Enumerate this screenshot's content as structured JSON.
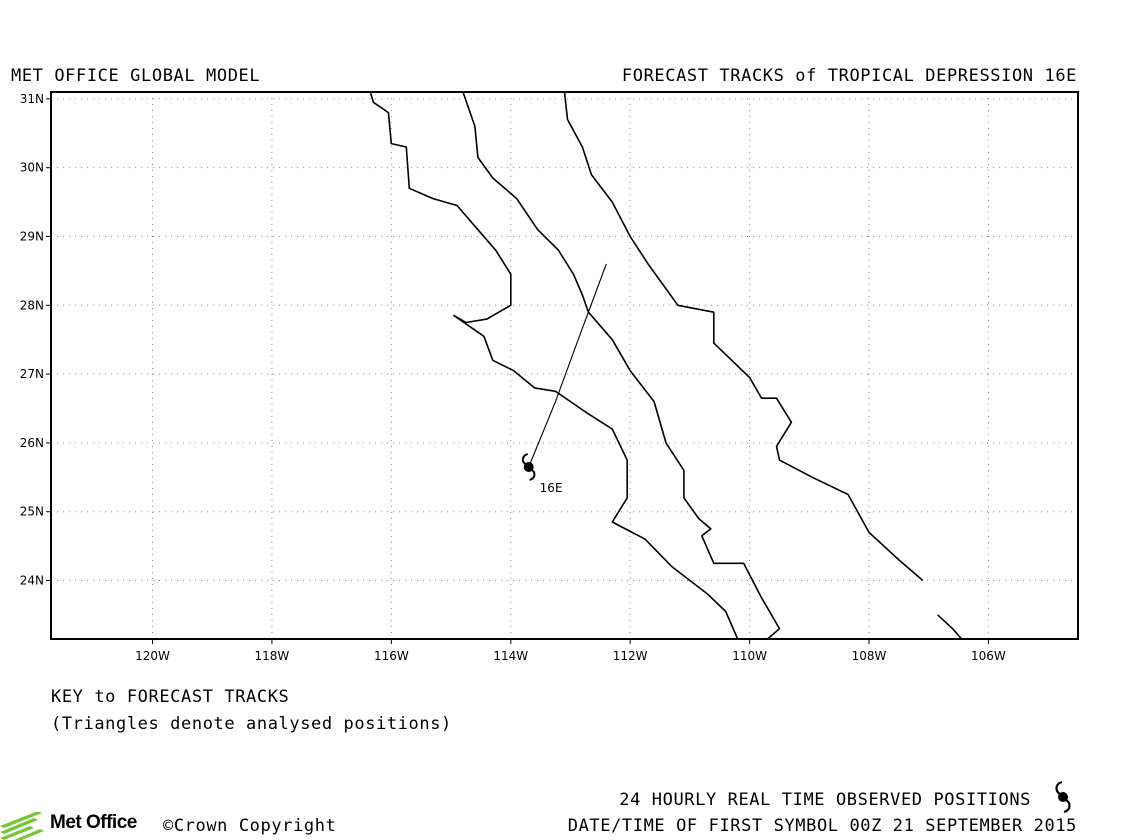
{
  "header": {
    "left_title": "MET OFFICE GLOBAL MODEL",
    "right_title": "FORECAST TRACKS of TROPICAL DEPRESSION 16E"
  },
  "map": {
    "lon_range": [
      -121.7,
      -104.5
    ],
    "lat_range": [
      23.15,
      31.1
    ],
    "lat_ticks": [
      {
        "value": 31,
        "label": "31N"
      },
      {
        "value": 30,
        "label": "30N"
      },
      {
        "value": 29,
        "label": "29N"
      },
      {
        "value": 28,
        "label": "28N"
      },
      {
        "value": 27,
        "label": "27N"
      },
      {
        "value": 26,
        "label": "26N"
      },
      {
        "value": 25,
        "label": "25N"
      },
      {
        "value": 24,
        "label": "24N"
      }
    ],
    "lon_ticks": [
      {
        "value": -120,
        "label": "120W"
      },
      {
        "value": -118,
        "label": "118W"
      },
      {
        "value": -116,
        "label": "116W"
      },
      {
        "value": -114,
        "label": "114W"
      },
      {
        "value": -112,
        "label": "112W"
      },
      {
        "value": -110,
        "label": "110W"
      },
      {
        "value": -108,
        "label": "108W"
      },
      {
        "value": -106,
        "label": "106W"
      }
    ],
    "grid": "dotted",
    "coastlines": [
      [
        [
          -116.35,
          31.1
        ],
        [
          -116.3,
          30.95
        ],
        [
          -116.05,
          30.8
        ],
        [
          -116.0,
          30.35
        ],
        [
          -115.75,
          30.3
        ],
        [
          -115.7,
          29.7
        ],
        [
          -115.3,
          29.55
        ],
        [
          -114.9,
          29.45
        ],
        [
          -114.6,
          29.15
        ],
        [
          -114.25,
          28.8
        ],
        [
          -114.0,
          28.45
        ],
        [
          -114.0,
          28.0
        ],
        [
          -114.1,
          27.95
        ],
        [
          -114.4,
          27.8
        ],
        [
          -114.75,
          27.75
        ],
        [
          -114.95,
          27.85
        ],
        [
          -114.45,
          27.55
        ],
        [
          -114.3,
          27.2
        ],
        [
          -113.95,
          27.05
        ],
        [
          -113.6,
          26.8
        ],
        [
          -113.25,
          26.75
        ],
        [
          -113.0,
          26.6
        ],
        [
          -112.75,
          26.45
        ],
        [
          -112.3,
          26.2
        ],
        [
          -112.05,
          25.75
        ],
        [
          -112.05,
          25.2
        ],
        [
          -112.3,
          24.85
        ],
        [
          -111.75,
          24.6
        ],
        [
          -111.3,
          24.2
        ],
        [
          -111.0,
          24.0
        ],
        [
          -110.7,
          23.8
        ],
        [
          -110.4,
          23.55
        ],
        [
          -110.2,
          23.15
        ]
      ],
      [
        [
          -114.8,
          31.1
        ],
        [
          -114.6,
          30.6
        ],
        [
          -114.55,
          30.15
        ],
        [
          -114.3,
          29.85
        ],
        [
          -113.9,
          29.55
        ],
        [
          -113.55,
          29.1
        ],
        [
          -113.2,
          28.8
        ],
        [
          -112.95,
          28.45
        ],
        [
          -112.8,
          28.15
        ],
        [
          -112.7,
          27.9
        ],
        [
          -112.3,
          27.5
        ],
        [
          -112.0,
          27.05
        ],
        [
          -111.6,
          26.6
        ],
        [
          -111.4,
          26.0
        ],
        [
          -111.1,
          25.6
        ],
        [
          -111.1,
          25.2
        ],
        [
          -110.85,
          24.9
        ],
        [
          -110.65,
          24.75
        ],
        [
          -110.8,
          24.65
        ],
        [
          -110.6,
          24.25
        ],
        [
          -110.1,
          24.25
        ],
        [
          -109.8,
          23.75
        ],
        [
          -109.5,
          23.3
        ],
        [
          -109.7,
          23.15
        ]
      ],
      [
        [
          -113.1,
          31.1
        ],
        [
          -113.05,
          30.7
        ],
        [
          -112.8,
          30.3
        ],
        [
          -112.65,
          29.9
        ],
        [
          -112.3,
          29.5
        ],
        [
          -112.0,
          29.0
        ],
        [
          -111.7,
          28.6
        ],
        [
          -111.2,
          28.0
        ],
        [
          -110.6,
          27.9
        ],
        [
          -110.6,
          27.45
        ],
        [
          -110.3,
          27.2
        ],
        [
          -110.0,
          26.95
        ],
        [
          -109.8,
          26.65
        ],
        [
          -109.55,
          26.65
        ],
        [
          -109.3,
          26.3
        ],
        [
          -109.55,
          25.95
        ],
        [
          -109.5,
          25.75
        ],
        [
          -108.95,
          25.5
        ],
        [
          -108.35,
          25.25
        ],
        [
          -108.0,
          24.7
        ],
        [
          -107.5,
          24.3
        ],
        [
          -107.1,
          24.0
        ]
      ],
      [
        [
          -106.85,
          23.5
        ],
        [
          -106.6,
          23.3
        ],
        [
          -106.45,
          23.15
        ]
      ]
    ],
    "forecast_track": [
      [
        -113.7,
        25.65
      ],
      [
        -113.25,
        26.6
      ],
      [
        -112.85,
        27.55
      ],
      [
        -112.4,
        28.6
      ]
    ],
    "storm": {
      "lon": -113.7,
      "lat": 25.65,
      "label": "16E"
    }
  },
  "key": {
    "title": "KEY to FORECAST TRACKS",
    "subtitle": "(Triangles denote analysed positions)"
  },
  "footer": {
    "observed_label": "24 HOURLY REAL TIME OBSERVED POSITIONS",
    "datetime_label": "DATE/TIME OF FIRST SYMBOL 00Z 21 SEPTEMBER 2015",
    "brand": "Met Office",
    "copyright": "©Crown Copyright"
  },
  "colors": {
    "brand_green": "#76c733",
    "line": "#000000",
    "grid": "#888888"
  }
}
